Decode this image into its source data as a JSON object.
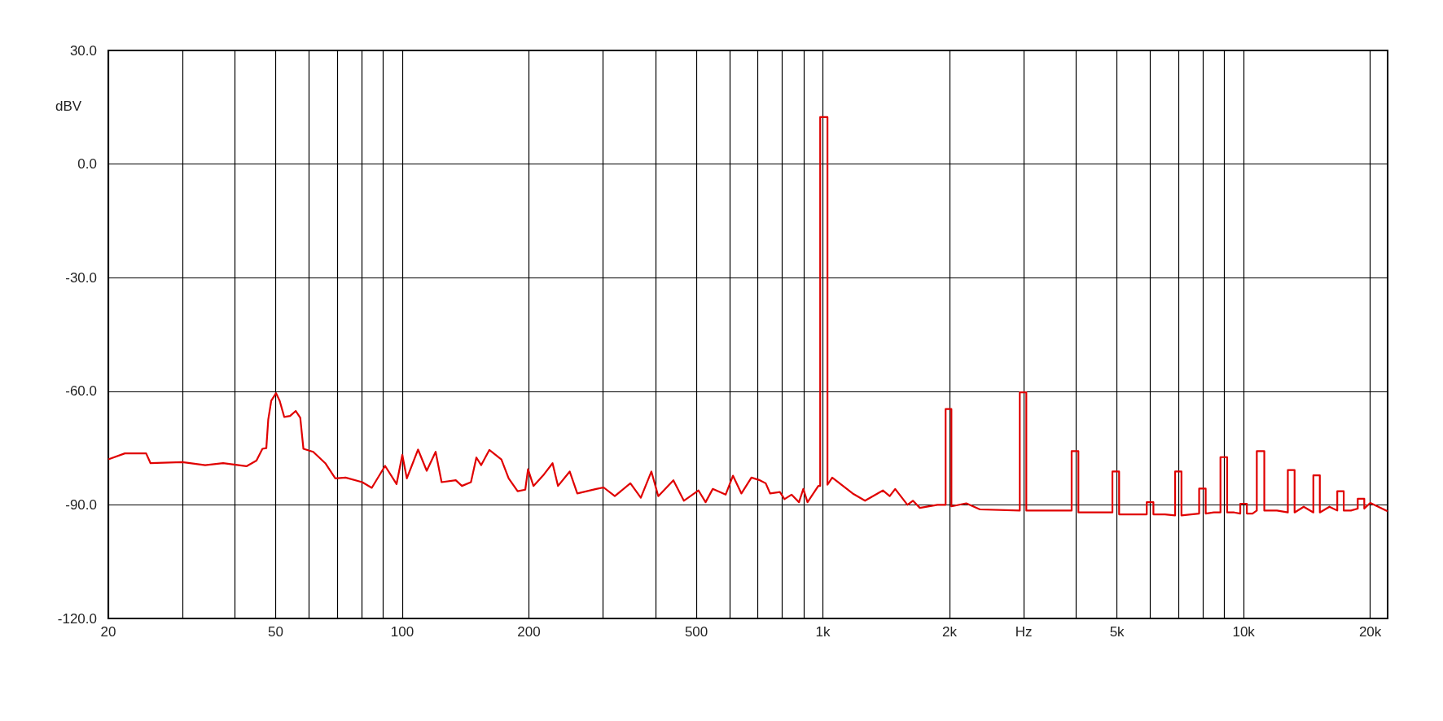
{
  "chart_data": {
    "type": "line",
    "ylabel": "dBV",
    "series": [
      {
        "color": "#e00000",
        "x": [
          20,
          21.9,
          24.6,
          25.2,
          30,
          34,
          37.5,
          42.6,
          45,
          46.5,
          47.5,
          48,
          48.8,
          50.1,
          51.1,
          52.4,
          54.1,
          55.8,
          57.2,
          58.2,
          61.4,
          65.6,
          69.3,
          73.3,
          80.3,
          84.6,
          91,
          96.9,
          100,
          102.5,
          109,
          114.3,
          120,
          124,
          134,
          138.6,
          145.6,
          150,
          154,
          161,
          172,
          179,
          188,
          196,
          199,
          205,
          217,
          227.6,
          234.5,
          250,
          260.6,
          289,
          301,
          320,
          348.5,
          369,
          391,
          406,
          441,
          467,
          506,
          526,
          547,
          587,
          611,
          640,
          676,
          708,
          731,
          749,
          790,
          810,
          842,
          877,
          898,
          919,
          975,
          985,
          985,
          1025,
          1025,
          1052,
          1177,
          1259,
          1388,
          1441,
          1485,
          1588,
          1636,
          1700,
          1871,
          1957,
          1957,
          2020,
          2020,
          2191,
          2362,
          2937,
          2937,
          3044,
          3044,
          3500,
          3901,
          3901,
          4048,
          4048,
          4500,
          4877,
          4877,
          5059,
          5059,
          5500,
          5885,
          5885,
          6104,
          6104,
          6500,
          6874,
          6874,
          7117,
          7117,
          7500,
          7840,
          7840,
          8126,
          8126,
          8500,
          8811,
          8811,
          9140,
          9140,
          9500,
          9820,
          9820,
          10180,
          10180,
          10500,
          10750,
          10750,
          11200,
          11200,
          12000,
          12740,
          12740,
          13220,
          13220,
          13900,
          14650,
          14650,
          15180,
          15180,
          16000,
          16700,
          16700,
          17300,
          17300,
          18000,
          18680,
          18680,
          19360,
          19360,
          20000,
          22000
        ],
        "values": [
          -78,
          -76.4,
          -76.4,
          -79,
          -78.7,
          -79.5,
          -79,
          -79.8,
          -78.3,
          -75.2,
          -75,
          -67.5,
          -62.5,
          -60.5,
          -62.5,
          -66.8,
          -66.5,
          -65.2,
          -67,
          -75.2,
          -76,
          -79,
          -83,
          -82.8,
          -84,
          -85.5,
          -79.7,
          -84.5,
          -76.8,
          -83,
          -75.4,
          -81,
          -76,
          -84,
          -83.5,
          -85,
          -84,
          -77.5,
          -79.5,
          -75.5,
          -78,
          -83,
          -86.4,
          -86,
          -80.6,
          -85,
          -82,
          -79,
          -85,
          -81.2,
          -87,
          -85.8,
          -85.4,
          -87.7,
          -84.3,
          -88.1,
          -81.2,
          -87.7,
          -83.5,
          -88.9,
          -86.2,
          -89.3,
          -85.8,
          -87.3,
          -82.3,
          -87,
          -82.8,
          -83.5,
          -84.3,
          -87,
          -86.6,
          -88.5,
          -87.3,
          -89.3,
          -85.8,
          -89.3,
          -85,
          -85,
          12.4,
          12.4,
          -84.7,
          -82.8,
          -87,
          -88.9,
          -86.2,
          -87.7,
          -85.8,
          -90,
          -88.9,
          -90.8,
          -90,
          -90,
          -64.7,
          -64.7,
          -90.4,
          -89.6,
          -91.2,
          -91.5,
          -60.3,
          -60.3,
          -91.5,
          -91.5,
          -91.5,
          -75.8,
          -75.8,
          -92,
          -92,
          -92,
          -81.2,
          -81.2,
          -92.5,
          -92.5,
          -92.5,
          -89.3,
          -89.3,
          -92.5,
          -92.5,
          -92.8,
          -81.2,
          -81.2,
          -92.8,
          -92.5,
          -92.3,
          -85.7,
          -85.7,
          -92.3,
          -92,
          -92,
          -77.4,
          -77.4,
          -92,
          -92,
          -92.3,
          -89.7,
          -89.7,
          -92.3,
          -92.3,
          -91.5,
          -75.8,
          -75.8,
          -91.5,
          -91.5,
          -92,
          -80.8,
          -80.8,
          -92,
          -90.5,
          -92,
          -82.2,
          -82.2,
          -92,
          -90.5,
          -91.5,
          -86.4,
          -86.4,
          -91.5,
          -91.5,
          -91,
          -88.4,
          -88.4,
          -91,
          -89.5,
          -91.7
        ]
      }
    ],
    "xlim": [
      20,
      22000
    ],
    "xticks": [
      20,
      {
        "value": 30,
        "label": null
      },
      {
        "value": 40,
        "label": null
      },
      50,
      {
        "value": 60,
        "label": null
      },
      {
        "value": 70,
        "label": null
      },
      {
        "value": 80,
        "label": null
      },
      {
        "value": 90,
        "label": null
      },
      100,
      200,
      {
        "value": 300,
        "label": null
      },
      {
        "value": 400,
        "label": null
      },
      500,
      {
        "value": 600,
        "label": null
      },
      {
        "value": 700,
        "label": null
      },
      {
        "value": 800,
        "label": null
      },
      {
        "value": 900,
        "label": null
      },
      {
        "value": 1000,
        "label": "1k"
      },
      {
        "value": 2000,
        "label": "2k"
      },
      {
        "value": 3000,
        "label": "Hz"
      },
      {
        "value": 4000,
        "label": null
      },
      {
        "value": 5000,
        "label": "5k"
      },
      {
        "value": 6000,
        "label": null
      },
      {
        "value": 7000,
        "label": null
      },
      {
        "value": 8000,
        "label": null
      },
      {
        "value": 9000,
        "label": null
      },
      {
        "value": 10000,
        "label": "10k"
      },
      {
        "value": 20000,
        "label": "20k"
      }
    ],
    "ylim": [
      -120,
      30
    ],
    "yticks": [
      {
        "value": -120,
        "label": "-120.0"
      },
      {
        "value": -90,
        "label": "-90.0"
      },
      {
        "value": -60,
        "label": "-60.0"
      },
      {
        "value": -30,
        "label": "-30.0"
      },
      {
        "value": 0,
        "label": "0.0"
      },
      {
        "value": 30,
        "label": "30.0"
      }
    ],
    "log": "x",
    "grid": true,
    "marker": "none",
    "line_style": "solid"
  }
}
